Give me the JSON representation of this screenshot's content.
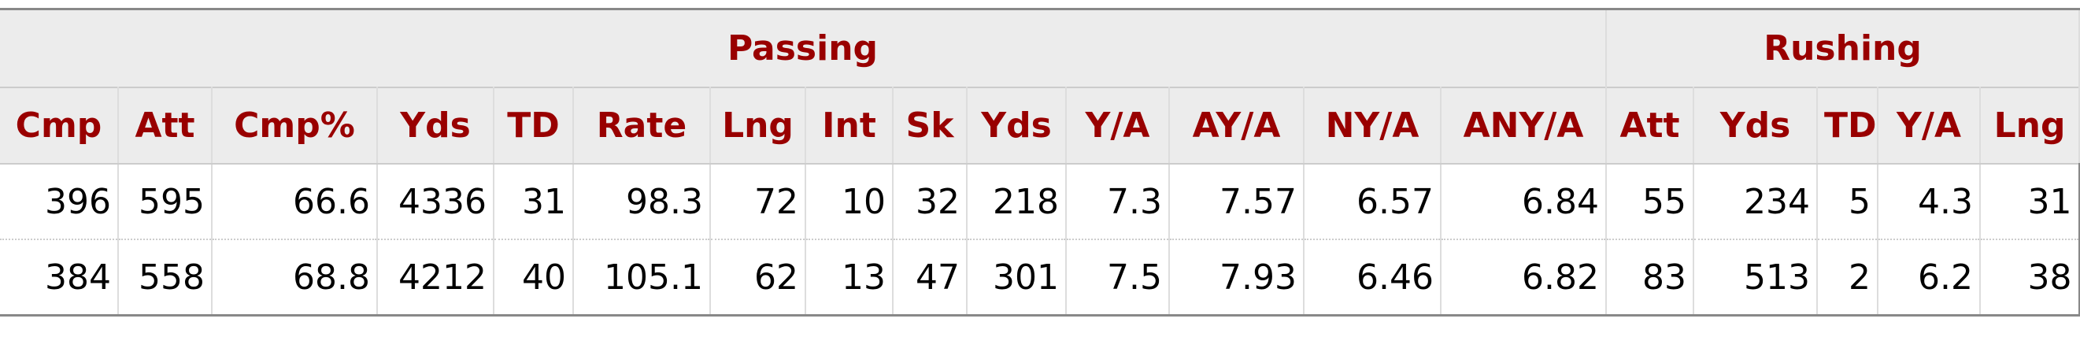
{
  "table": {
    "groups": [
      "Passing",
      "Rushing"
    ],
    "columns": [
      "Cmp",
      "Att",
      "Cmp%",
      "Yds",
      "TD",
      "Rate",
      "Lng",
      "Int",
      "Sk",
      "Yds",
      "Y/A",
      "AY/A",
      "NY/A",
      "ANY/A",
      "Att",
      "Yds",
      "TD",
      "Y/A",
      "Lng"
    ],
    "rows": [
      [
        "396",
        "595",
        "66.6",
        "4336",
        "31",
        "98.3",
        "72",
        "10",
        "32",
        "218",
        "7.3",
        "7.57",
        "6.57",
        "6.84",
        "55",
        "234",
        "5",
        "4.3",
        "31"
      ],
      [
        "384",
        "558",
        "68.8",
        "4212",
        "40",
        "105.1",
        "62",
        "13",
        "47",
        "301",
        "7.5",
        "7.93",
        "6.46",
        "6.82",
        "83",
        "513",
        "2",
        "6.2",
        "38"
      ]
    ]
  }
}
